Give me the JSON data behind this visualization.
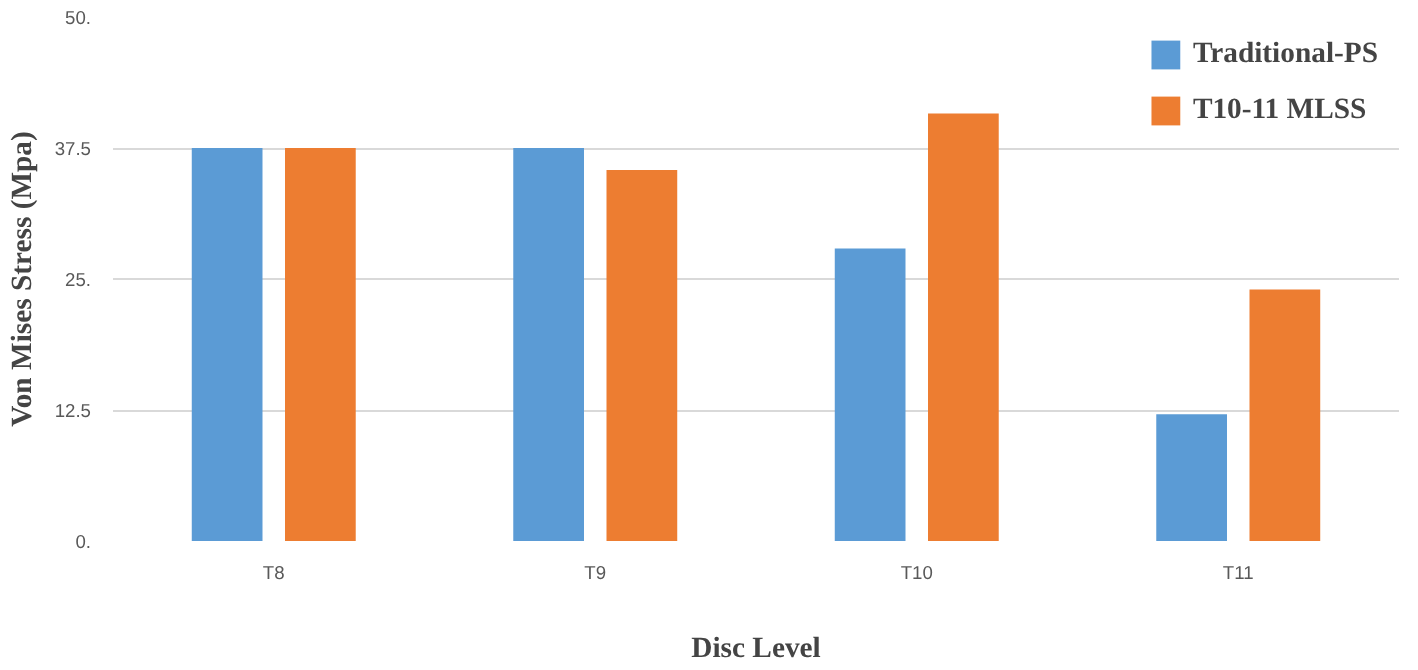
{
  "chart_data": {
    "type": "bar",
    "xlabel": "Disc Level",
    "ylabel": "Von Mises Stress (Mpa)",
    "categories": [
      "T8",
      "T9",
      "T10",
      "T11"
    ],
    "series": [
      {
        "name": "Traditional-PS",
        "color": "#5b9bd5",
        "values": [
          37.5,
          37.5,
          27.9,
          12.1
        ]
      },
      {
        "name": "T10-11 MLSS",
        "color": "#ed7d31",
        "values": [
          37.5,
          35.4,
          40.8,
          24.0
        ]
      }
    ],
    "ylim": [
      0,
      50
    ],
    "yticks": [
      {
        "value": 0,
        "label": "0."
      },
      {
        "value": 12.5,
        "label": "12.5"
      },
      {
        "value": 25,
        "label": "25."
      },
      {
        "value": 37.5,
        "label": "37.5"
      },
      {
        "value": 50,
        "label": "50."
      }
    ],
    "grid": "y",
    "legend": "top right"
  }
}
